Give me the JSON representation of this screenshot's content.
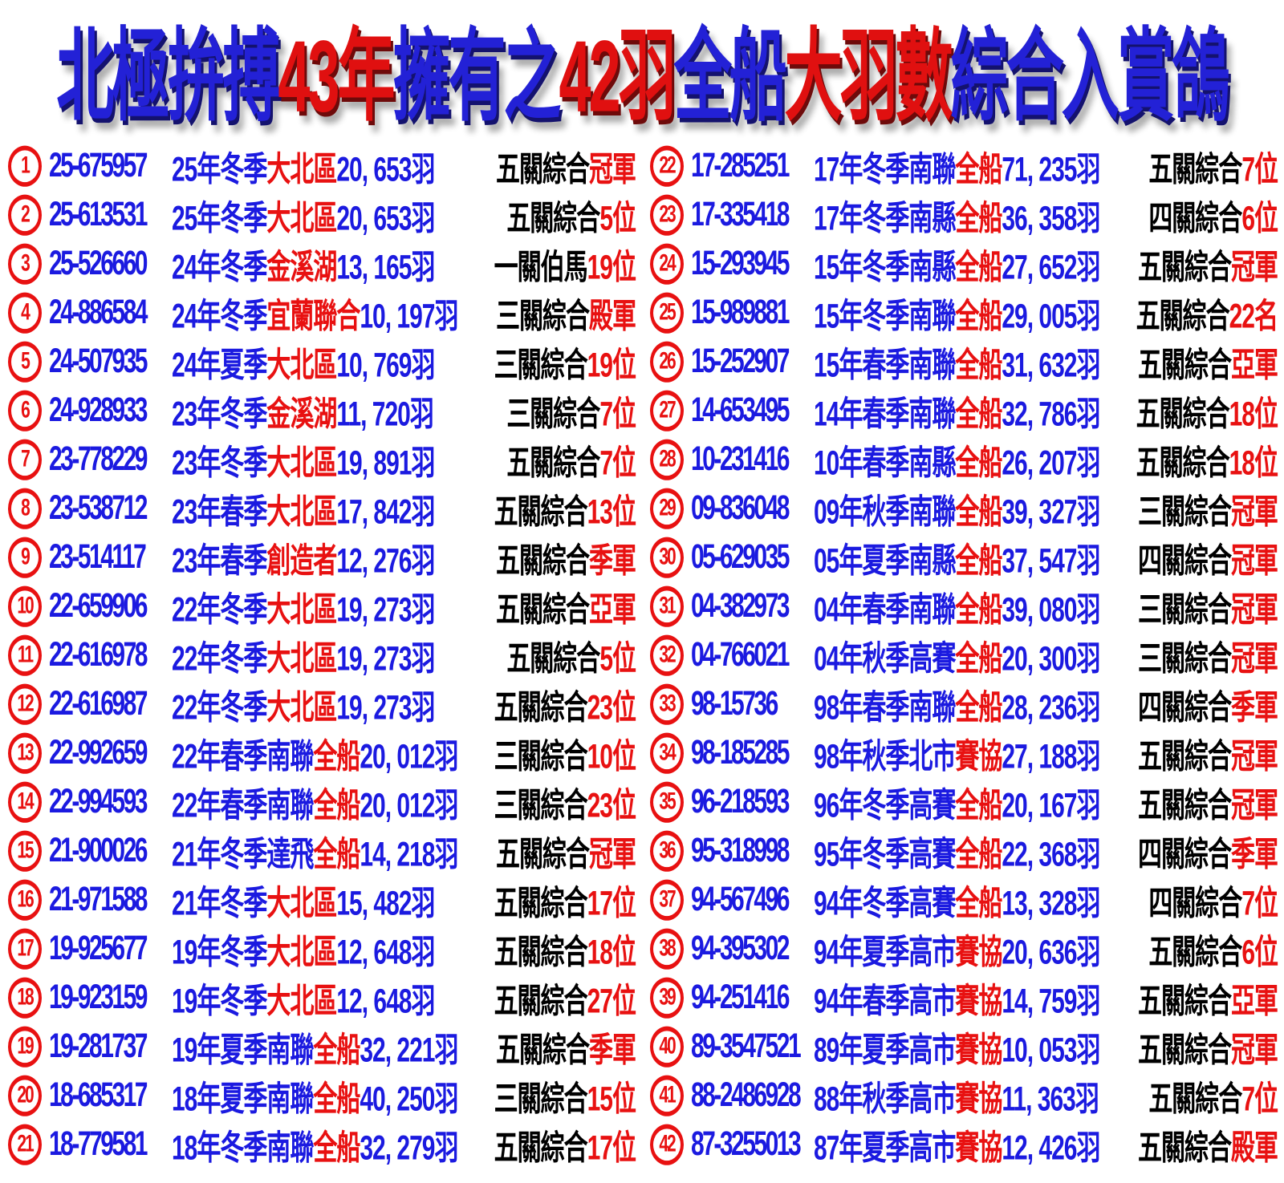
{
  "colors": {
    "title_blue": "#2321d6",
    "title_red": "#e01010",
    "text_blue": "#1b1ae0",
    "text_red": "#e81111",
    "text_black": "#000000",
    "background": "#ffffff"
  },
  "title": {
    "parts": [
      {
        "text": "北極拚搏",
        "color": "blue"
      },
      {
        "text": "43年",
        "color": "red"
      },
      {
        "text": "擁有之",
        "color": "blue"
      },
      {
        "text": "42羽",
        "color": "red"
      },
      {
        "text": "全船",
        "color": "blue"
      },
      {
        "text": "大羽數",
        "color": "red"
      },
      {
        "text": "綜合入賞鴿",
        "color": "blue"
      }
    ]
  },
  "rows": [
    {
      "no": "1",
      "ring": "25-675957",
      "season": "25年冬季",
      "club": "大北區",
      "count": "20, 653羽",
      "prefix": "五關綜合",
      "suffix": "冠軍"
    },
    {
      "no": "2",
      "ring": "25-613531",
      "season": "25年冬季",
      "club": "大北區",
      "count": "20, 653羽",
      "prefix": "五關綜合",
      "suffix": "5位"
    },
    {
      "no": "3",
      "ring": "25-526660",
      "season": "24年冬季",
      "club": "金溪湖",
      "count": "13, 165羽",
      "prefix": "一關伯馬",
      "suffix": "19位"
    },
    {
      "no": "4",
      "ring": "24-886584",
      "season": "24年冬季",
      "club": "宜蘭聯合",
      "count": "10, 197羽",
      "prefix": "三關綜合",
      "suffix": "殿軍"
    },
    {
      "no": "5",
      "ring": "24-507935",
      "season": "24年夏季",
      "club": "大北區",
      "count": "10, 769羽",
      "prefix": "三關綜合",
      "suffix": "19位"
    },
    {
      "no": "6",
      "ring": "24-928933",
      "season": "23年冬季",
      "club": "金溪湖",
      "count": "11, 720羽",
      "prefix": "三關綜合",
      "suffix": "7位"
    },
    {
      "no": "7",
      "ring": "23-778229",
      "season": "23年冬季",
      "club": "大北區",
      "count": "19, 891羽",
      "prefix": "五關綜合",
      "suffix": "7位"
    },
    {
      "no": "8",
      "ring": "23-538712",
      "season": "23年春季",
      "club": "大北區",
      "count": "17, 842羽",
      "prefix": "五關綜合",
      "suffix": "13位"
    },
    {
      "no": "9",
      "ring": "23-514117",
      "season": "23年春季",
      "club": "創造者",
      "count": "12, 276羽",
      "prefix": "五關綜合",
      "suffix": "季軍"
    },
    {
      "no": "10",
      "ring": "22-659906",
      "season": "22年冬季",
      "club": "大北區",
      "count": "19, 273羽",
      "prefix": "五關綜合",
      "suffix": "亞軍"
    },
    {
      "no": "11",
      "ring": "22-616978",
      "season": "22年冬季",
      "club": "大北區",
      "count": "19, 273羽",
      "prefix": "五關綜合",
      "suffix": "5位"
    },
    {
      "no": "12",
      "ring": "22-616987",
      "season": "22年冬季",
      "club": "大北區",
      "count": "19, 273羽",
      "prefix": "五關綜合",
      "suffix": "23位"
    },
    {
      "no": "13",
      "ring": "22-992659",
      "season": "22年春季南聯",
      "club": "全船",
      "count": "20, 012羽",
      "prefix": "三關綜合",
      "suffix": "10位"
    },
    {
      "no": "14",
      "ring": "22-994593",
      "season": "22年春季南聯",
      "club": "全船",
      "count": "20, 012羽",
      "prefix": "三關綜合",
      "suffix": "23位"
    },
    {
      "no": "15",
      "ring": "21-900026",
      "season": "21年冬季達飛",
      "club": "全船",
      "count": "14, 218羽",
      "prefix": "五關綜合",
      "suffix": "冠軍"
    },
    {
      "no": "16",
      "ring": "21-971588",
      "season": "21年冬季",
      "club": "大北區",
      "count": "15, 482羽",
      "prefix": "五關綜合",
      "suffix": "17位"
    },
    {
      "no": "17",
      "ring": "19-925677",
      "season": "19年冬季",
      "club": "大北區",
      "count": "12, 648羽",
      "prefix": "五關綜合",
      "suffix": "18位"
    },
    {
      "no": "18",
      "ring": "19-923159",
      "season": "19年冬季",
      "club": "大北區",
      "count": "12, 648羽",
      "prefix": "五關綜合",
      "suffix": "27位"
    },
    {
      "no": "19",
      "ring": "19-281737",
      "season": "19年夏季南聯",
      "club": "全船",
      "count": "32, 221羽",
      "prefix": "五關綜合",
      "suffix": "季軍"
    },
    {
      "no": "20",
      "ring": "18-685317",
      "season": "18年夏季南聯",
      "club": "全船",
      "count": "40, 250羽",
      "prefix": "三關綜合",
      "suffix": "15位"
    },
    {
      "no": "21",
      "ring": "18-779581",
      "season": "18年冬季南聯",
      "club": "全船",
      "count": "32, 279羽",
      "prefix": "五關綜合",
      "suffix": "17位"
    },
    {
      "no": "22",
      "ring": "17-285251",
      "season": "17年冬季南聯",
      "club": "全船",
      "count": "71, 235羽",
      "prefix": "五關綜合",
      "suffix": "7位"
    },
    {
      "no": "23",
      "ring": "17-335418",
      "season": "17年冬季南縣",
      "club": "全船",
      "count": "36, 358羽",
      "prefix": "四關綜合",
      "suffix": "6位"
    },
    {
      "no": "24",
      "ring": "15-293945",
      "season": "15年冬季南縣",
      "club": "全船",
      "count": "27, 652羽",
      "prefix": "五關綜合",
      "suffix": "冠軍"
    },
    {
      "no": "25",
      "ring": "15-989881",
      "season": "15年冬季南聯",
      "club": "全船",
      "count": "29, 005羽",
      "prefix": "五關綜合",
      "suffix": "22名"
    },
    {
      "no": "26",
      "ring": "15-252907",
      "season": "15年春季南聯",
      "club": "全船",
      "count": "31, 632羽",
      "prefix": "五關綜合",
      "suffix": "亞軍"
    },
    {
      "no": "27",
      "ring": "14-653495",
      "season": "14年春季南聯",
      "club": "全船",
      "count": "32, 786羽",
      "prefix": "五關綜合",
      "suffix": "18位"
    },
    {
      "no": "28",
      "ring": "10-231416",
      "season": "10年春季南縣",
      "club": "全船",
      "count": "26, 207羽",
      "prefix": "五關綜合",
      "suffix": "18位"
    },
    {
      "no": "29",
      "ring": "09-836048",
      "season": "09年秋季南聯",
      "club": "全船",
      "count": "39, 327羽",
      "prefix": "三關綜合",
      "suffix": "冠軍"
    },
    {
      "no": "30",
      "ring": "05-629035",
      "season": "05年夏季南縣",
      "club": "全船",
      "count": "37, 547羽",
      "prefix": "四關綜合",
      "suffix": "冠軍"
    },
    {
      "no": "31",
      "ring": "04-382973",
      "season": "04年春季南聯",
      "club": "全船",
      "count": "39, 080羽",
      "prefix": "三關綜合",
      "suffix": "冠軍"
    },
    {
      "no": "32",
      "ring": "04-766021",
      "season": "04年秋季高賽",
      "club": "全船",
      "count": "20, 300羽",
      "prefix": "三關綜合",
      "suffix": "冠軍"
    },
    {
      "no": "33",
      "ring": "98-15736",
      "season": "98年春季南聯",
      "club": "全船",
      "count": "28, 236羽",
      "prefix": "四關綜合",
      "suffix": "季軍"
    },
    {
      "no": "34",
      "ring": "98-185285",
      "season": "98年秋季北市",
      "club": "賽協",
      "count": "27, 188羽",
      "prefix": "五關綜合",
      "suffix": "冠軍"
    },
    {
      "no": "35",
      "ring": "96-218593",
      "season": "96年冬季高賽",
      "club": "全船",
      "count": "20, 167羽",
      "prefix": "五關綜合",
      "suffix": "冠軍"
    },
    {
      "no": "36",
      "ring": "95-318998",
      "season": "95年冬季高賽",
      "club": "全船",
      "count": "22, 368羽",
      "prefix": "四關綜合",
      "suffix": "季軍"
    },
    {
      "no": "37",
      "ring": "94-567496",
      "season": "94年冬季高賽",
      "club": "全船",
      "count": "13, 328羽",
      "prefix": "四關綜合",
      "suffix": "7位"
    },
    {
      "no": "38",
      "ring": "94-395302",
      "season": "94年夏季高市",
      "club": "賽協",
      "count": "20, 636羽",
      "prefix": "五關綜合",
      "suffix": "6位"
    },
    {
      "no": "39",
      "ring": "94-251416",
      "season": "94年春季高市",
      "club": "賽協",
      "count": "14, 759羽",
      "prefix": "五關綜合",
      "suffix": "亞軍"
    },
    {
      "no": "40",
      "ring": "89-3547521",
      "season": "89年夏季高市",
      "club": "賽協",
      "count": "10, 053羽",
      "prefix": "五關綜合",
      "suffix": "冠軍"
    },
    {
      "no": "41",
      "ring": "88-2486928",
      "season": "88年秋季高市",
      "club": "賽協",
      "count": "11, 363羽",
      "prefix": "五關綜合",
      "suffix": "7位"
    },
    {
      "no": "42",
      "ring": "87-3255013",
      "season": "87年夏季高市",
      "club": "賽協",
      "count": "12, 426羽",
      "prefix": "五關綜合",
      "suffix": "殿軍"
    }
  ]
}
